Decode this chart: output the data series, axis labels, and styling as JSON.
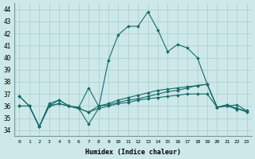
{
  "xlabel": "Humidex (Indice chaleur)",
  "xlim": [
    -0.5,
    23.5
  ],
  "ylim": [
    33.5,
    44.5
  ],
  "yticks": [
    34,
    35,
    36,
    37,
    38,
    39,
    40,
    41,
    42,
    43,
    44
  ],
  "background_color": "#cce8e8",
  "grid_color": "#aacccc",
  "line_color": "#1a6b6b",
  "series": [
    {
      "x": [
        0,
        1,
        2,
        3,
        4,
        5,
        6,
        7,
        8,
        9,
        10,
        11,
        12,
        13,
        14,
        15,
        16,
        17,
        18,
        19,
        20,
        21,
        22
      ],
      "y": [
        36.8,
        36.0,
        34.3,
        36.0,
        36.5,
        36.0,
        35.8,
        34.5,
        35.8,
        39.8,
        41.9,
        42.6,
        42.6,
        43.8,
        42.3,
        40.5,
        41.1,
        40.8,
        40.0,
        37.8,
        35.9,
        36.1,
        35.7
      ]
    },
    {
      "x": [
        0,
        1,
        2,
        3,
        4,
        5,
        6,
        7,
        8,
        9,
        10,
        11,
        12,
        13,
        14,
        15,
        16,
        17,
        18,
        19,
        20,
        21,
        22,
        23
      ],
      "y": [
        36.8,
        36.0,
        34.3,
        36.2,
        36.5,
        36.0,
        35.9,
        37.5,
        36.0,
        36.1,
        36.3,
        36.5,
        36.6,
        36.8,
        37.0,
        37.2,
        37.3,
        37.5,
        37.7,
        37.8,
        35.9,
        36.0,
        36.1,
        35.6
      ]
    },
    {
      "x": [
        0,
        1,
        2,
        3,
        4,
        5,
        6,
        7,
        8,
        9,
        10,
        11,
        12,
        13,
        14,
        15,
        16,
        17,
        18,
        19,
        20,
        21,
        22,
        23
      ],
      "y": [
        36.0,
        36.0,
        34.3,
        36.0,
        36.2,
        36.0,
        35.8,
        35.5,
        36.0,
        36.2,
        36.5,
        36.7,
        36.9,
        37.1,
        37.3,
        37.4,
        37.5,
        37.6,
        37.7,
        37.8,
        35.9,
        36.0,
        35.8,
        35.6
      ]
    },
    {
      "x": [
        0,
        1,
        2,
        3,
        4,
        5,
        6,
        7,
        8,
        9,
        10,
        11,
        12,
        13,
        14,
        15,
        16,
        17,
        18,
        19,
        20,
        21,
        22,
        23
      ],
      "y": [
        36.0,
        36.0,
        34.3,
        36.0,
        36.2,
        36.0,
        35.8,
        35.5,
        35.8,
        36.0,
        36.2,
        36.3,
        36.5,
        36.6,
        36.7,
        36.8,
        36.9,
        37.0,
        37.0,
        37.0,
        35.9,
        36.1,
        35.8,
        35.5
      ]
    }
  ]
}
